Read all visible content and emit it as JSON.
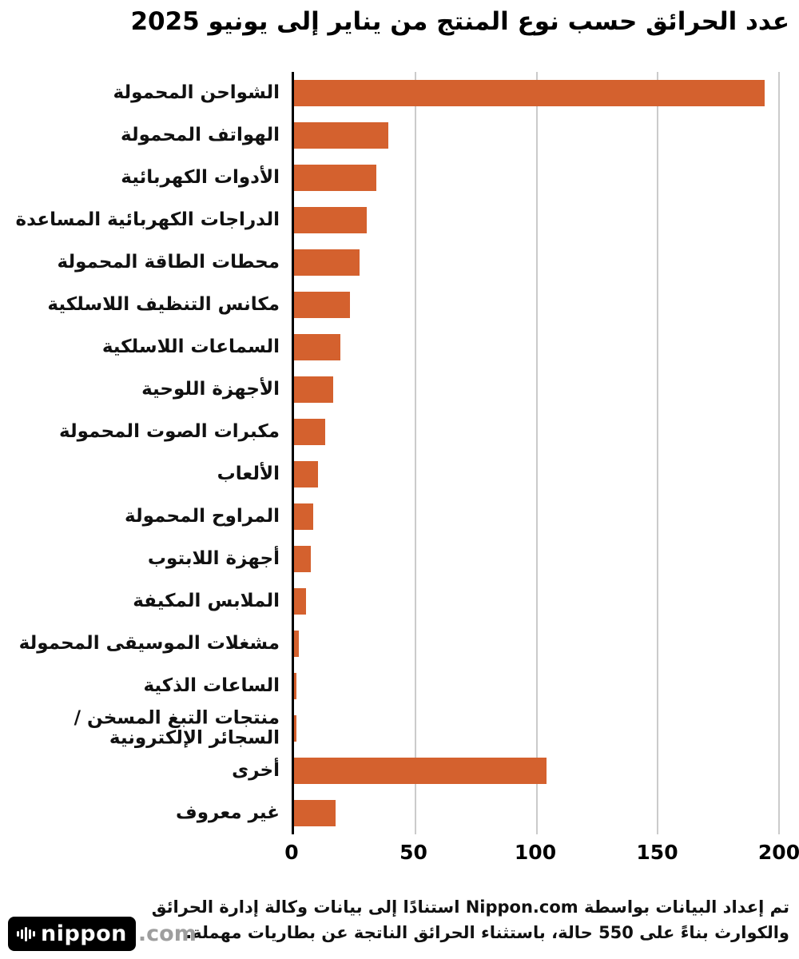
{
  "title": "عدد الحرائق حسب نوع المنتج من يناير إلى يونيو 2025",
  "colors": {
    "bar": "#d4612e",
    "grid": "#cbcbcb",
    "axis": "#000000"
  },
  "chart_data": {
    "type": "bar",
    "orientation": "horizontal",
    "title": "عدد الحرائق حسب نوع المنتج من يناير إلى يونيو 2025",
    "categories": [
      "الشواحن المحمولة",
      "الهواتف المحمولة",
      "الأدوات الكهربائية",
      "الدراجات الكهربائية المساعدة",
      "محطات الطاقة المحمولة",
      "مكانس التنظيف اللاسلكية",
      "السماعات اللاسلكية",
      "الأجهزة اللوحية",
      "مكبرات الصوت المحمولة",
      "الألعاب",
      "المراوح المحمولة",
      "أجهزة اللابتوب",
      "الملابس المكيفة",
      "مشغلات الموسيقى المحمولة",
      "الساعات الذكية",
      "منتجات التبغ المسخن / السجائر الإلكترونية",
      "أخرى",
      "غير معروف"
    ],
    "values": [
      194,
      39,
      34,
      30,
      27,
      23,
      19,
      16,
      13,
      10,
      8,
      7,
      5,
      2,
      1,
      1,
      104,
      17
    ],
    "xlim": [
      0,
      200
    ],
    "xticks": [
      0,
      50,
      100,
      150,
      200
    ],
    "grid": true,
    "legend": false,
    "total_cases_noted": 550
  },
  "footer": {
    "line1": "تم إعداد البيانات بواسطة Nippon.com استنادًا إلى بيانات وكالة إدارة الحرائق",
    "line2": "والكوارث بناءً على 550 حالة، باستثناء الحرائق الناتجة عن بطاريات مهملة."
  },
  "logo": {
    "brand": "nippon",
    "suffix": ".com"
  }
}
